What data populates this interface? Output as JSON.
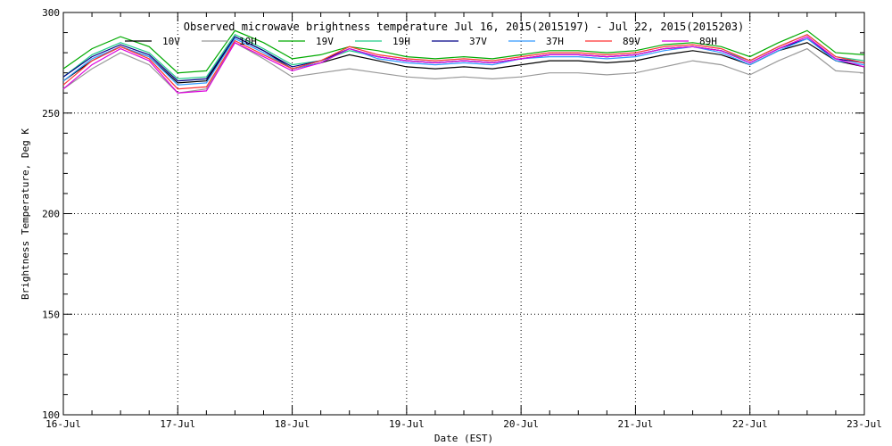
{
  "chart_data": {
    "type": "line",
    "title": "Observed microwave brightness temperature Jul 16, 2015(2015197) - Jul 22, 2015(2015203)",
    "xlabel": "Date (EST)",
    "ylabel": "Brightness Temperature, Deg K",
    "xlim": [
      0,
      7
    ],
    "ylim": [
      100,
      300
    ],
    "x_ticks": [
      "16-Jul",
      "17-Jul",
      "18-Jul",
      "19-Jul",
      "20-Jul",
      "21-Jul",
      "22-Jul",
      "23-Jul"
    ],
    "y_ticks": [
      100,
      150,
      200,
      250,
      300
    ],
    "grid": true,
    "legend_position": "top",
    "x": [
      0,
      0.25,
      0.5,
      0.75,
      1,
      1.25,
      1.5,
      1.75,
      2,
      2.25,
      2.5,
      2.75,
      3,
      3.25,
      3.5,
      3.75,
      4,
      4.25,
      4.5,
      4.75,
      5,
      5.25,
      5.5,
      5.75,
      6,
      6.25,
      6.5,
      6.75,
      7
    ],
    "series": [
      {
        "name": "10V",
        "color": "#000000",
        "values": [
          266,
          276,
          283,
          278,
          265,
          266,
          288,
          281,
          272,
          275,
          279,
          276,
          273,
          272,
          273,
          272,
          274,
          276,
          276,
          275,
          276,
          279,
          281,
          279,
          274,
          281,
          285,
          276,
          273
        ]
      },
      {
        "name": "10H",
        "color": "#999999",
        "values": [
          262,
          272,
          280,
          274,
          260,
          262,
          285,
          277,
          268,
          270,
          272,
          270,
          268,
          267,
          268,
          267,
          268,
          270,
          270,
          269,
          270,
          273,
          276,
          274,
          269,
          276,
          282,
          271,
          270
        ]
      },
      {
        "name": "19V",
        "color": "#00aa00",
        "values": [
          272,
          282,
          288,
          283,
          270,
          271,
          291,
          285,
          277,
          279,
          283,
          281,
          278,
          277,
          278,
          277,
          279,
          281,
          281,
          280,
          281,
          284,
          285,
          283,
          278,
          285,
          291,
          280,
          279
        ]
      },
      {
        "name": "19H",
        "color": "#22cc88",
        "values": [
          268,
          279,
          285,
          280,
          267,
          268,
          289,
          282,
          274,
          276,
          281,
          278,
          276,
          275,
          276,
          275,
          277,
          279,
          279,
          278,
          279,
          282,
          283,
          281,
          276,
          283,
          289,
          278,
          276
        ]
      },
      {
        "name": "37V",
        "color": "#000088",
        "values": [
          268,
          278,
          284,
          279,
          266,
          267,
          288,
          281,
          273,
          276,
          282,
          278,
          276,
          275,
          276,
          275,
          277,
          279,
          279,
          278,
          279,
          282,
          283,
          281,
          275,
          282,
          287,
          277,
          275
        ]
      },
      {
        "name": "37H",
        "color": "#3399ff",
        "values": [
          266,
          277,
          283,
          278,
          264,
          265,
          287,
          280,
          272,
          275,
          282,
          277,
          275,
          274,
          275,
          274,
          277,
          278,
          278,
          277,
          278,
          281,
          283,
          280,
          274,
          281,
          287,
          276,
          274
        ]
      },
      {
        "name": "89V",
        "color": "#ff3333",
        "values": [
          264,
          276,
          283,
          277,
          262,
          263,
          286,
          279,
          272,
          276,
          283,
          279,
          277,
          276,
          277,
          276,
          278,
          280,
          280,
          279,
          280,
          283,
          284,
          282,
          276,
          283,
          289,
          278,
          275
        ]
      },
      {
        "name": "89H",
        "color": "#dd00dd",
        "values": [
          262,
          274,
          282,
          276,
          260,
          261,
          285,
          278,
          271,
          275,
          282,
          278,
          276,
          275,
          276,
          275,
          277,
          279,
          279,
          278,
          279,
          282,
          283,
          281,
          275,
          282,
          288,
          277,
          273
        ]
      }
    ]
  }
}
